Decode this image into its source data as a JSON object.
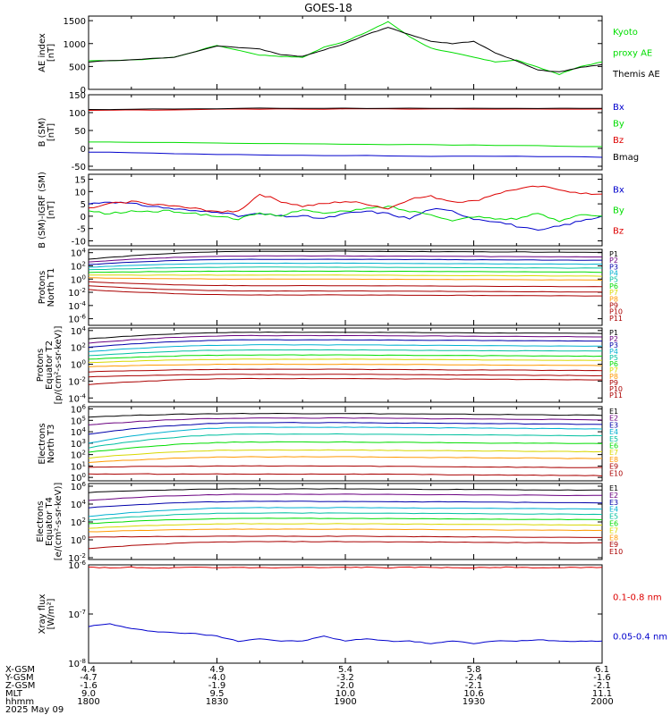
{
  "title": "GOES-18",
  "colors": {
    "black": "#000000",
    "green": "#00dd00",
    "red": "#dd0000",
    "blue": "#0000cc",
    "purple": "#6a0080",
    "navy": "#0000aa",
    "cyan": "#00b0d0",
    "teal": "#00c0a0",
    "lime": "#00dd00",
    "yellow": "#d8d800",
    "orange": "#ff9900",
    "darkred": "#aa0000"
  },
  "chart_data": [
    {
      "id": "ae",
      "type": "line",
      "ylabel": [
        "AE index",
        "[nT]"
      ],
      "ylim": [
        0,
        1600
      ],
      "yticks": [
        0,
        500,
        1000,
        1500
      ],
      "yticklabels": [
        "0",
        "500",
        "1000",
        "1500"
      ],
      "x": [
        0,
        10,
        20,
        30,
        40,
        45,
        50,
        55,
        60,
        65,
        70,
        75,
        80,
        85,
        90,
        95,
        100,
        105,
        110,
        115,
        120
      ],
      "series": [
        {
          "name": "Kyoto proxy AE",
          "color": "green",
          "values": [
            620,
            640,
            700,
            960,
            750,
            720,
            700,
            920,
            1050,
            1250,
            1480,
            1150,
            900,
            800,
            700,
            600,
            640,
            480,
            330,
            500,
            600
          ]
        },
        {
          "name": "Themis AE",
          "color": "black",
          "values": [
            600,
            650,
            700,
            950,
            880,
            760,
            720,
            860,
            1000,
            1200,
            1350,
            1200,
            1050,
            1000,
            1050,
            800,
            620,
            420,
            380,
            480,
            540
          ]
        }
      ],
      "legend": [
        {
          "text": "Kyoto",
          "color": "green"
        },
        {
          "text": "proxy AE",
          "color": "green"
        },
        {
          "text": "Themis AE",
          "color": "black"
        }
      ]
    },
    {
      "id": "bsm",
      "type": "line",
      "ylabel": [
        "B (SM)",
        "[nT]"
      ],
      "ylim": [
        -60,
        150
      ],
      "yticks": [
        -50,
        0,
        50,
        100,
        150
      ],
      "yticklabels": [
        "-50",
        "0",
        "50",
        "100",
        "150"
      ],
      "x": [
        0,
        20,
        40,
        60,
        80,
        100,
        120
      ],
      "series": [
        {
          "name": "Bx",
          "color": "blue",
          "values": [
            -10,
            -15,
            -18,
            -20,
            -22,
            -22,
            -25
          ]
        },
        {
          "name": "By",
          "color": "green",
          "values": [
            18,
            16,
            14,
            12,
            10,
            8,
            5
          ]
        },
        {
          "name": "Bz",
          "color": "red",
          "values": [
            106,
            108,
            110,
            110,
            110,
            110,
            110
          ]
        },
        {
          "name": "Bmag",
          "color": "black",
          "values": [
            108,
            110,
            112,
            112,
            112,
            112,
            112
          ]
        }
      ],
      "legend": [
        {
          "text": "Bx",
          "color": "blue"
        },
        {
          "text": "By",
          "color": "green"
        },
        {
          "text": "Bz",
          "color": "red"
        },
        {
          "text": "Bmag",
          "color": "black"
        }
      ]
    },
    {
      "id": "bigrf",
      "type": "line",
      "ylabel": [
        "B (SM)-IGRF (SM)",
        "[nT]"
      ],
      "ylim": [
        -12,
        17
      ],
      "yticks": [
        -10,
        -5,
        0,
        5,
        10,
        15
      ],
      "yticklabels": [
        "-10",
        "-5",
        "0",
        "5",
        "10",
        "15"
      ],
      "x": [
        0,
        5,
        10,
        15,
        20,
        25,
        30,
        35,
        40,
        45,
        50,
        55,
        60,
        65,
        70,
        75,
        80,
        85,
        90,
        95,
        100,
        105,
        110,
        115,
        120
      ],
      "series": [
        {
          "name": "Bx",
          "color": "blue",
          "values": [
            5,
            6,
            5,
            4,
            3,
            2,
            2,
            0,
            1,
            0,
            0,
            -1,
            1,
            2,
            1,
            -1,
            3,
            2,
            -1,
            -2,
            -4,
            -6,
            -4,
            -2,
            0
          ]
        },
        {
          "name": "By",
          "color": "green",
          "values": [
            2,
            1,
            2,
            2,
            2,
            1,
            0,
            -1,
            1,
            0,
            3,
            1,
            2,
            3,
            4,
            2,
            1,
            -2,
            0,
            -1,
            -1,
            1,
            -2,
            1,
            0
          ]
        },
        {
          "name": "Bz",
          "color": "red",
          "values": [
            3,
            5,
            6,
            5,
            4,
            3,
            2,
            2,
            9,
            6,
            4,
            5,
            6,
            5,
            3,
            7,
            8,
            6,
            6,
            9,
            11,
            12,
            11,
            9,
            9
          ]
        }
      ],
      "legend": [
        {
          "text": "Bx",
          "color": "blue"
        },
        {
          "text": "By",
          "color": "green"
        },
        {
          "text": "Bz",
          "color": "red"
        }
      ]
    },
    {
      "id": "pnorth",
      "type": "line",
      "log": true,
      "ylabel": [
        "Protons",
        "North T1"
      ],
      "ylim": [
        -7,
        4.5
      ],
      "yticks": [
        4,
        2,
        0,
        -2,
        -4,
        -6
      ],
      "yticklabels": [
        "10^4",
        "10^2",
        "10^0",
        "10^-2",
        "10^-4",
        "10^-6"
      ],
      "start": [
        3.0,
        2.6,
        2.2,
        1.8,
        1.4,
        1.0,
        0.6,
        0.2,
        -0.4,
        -1.0,
        -1.6
      ],
      "end": [
        4.2,
        3.5,
        3.0,
        2.4,
        1.8,
        1.2,
        0.6,
        0.0,
        -1.0,
        -1.8,
        -2.4
      ],
      "legend": [
        "P1",
        "P2",
        "P3",
        "P4",
        "P5",
        "P6",
        "P7",
        "P8",
        "P9",
        "P10",
        "P11"
      ]
    },
    {
      "id": "peq",
      "type": "line",
      "log": true,
      "ylabel": [
        "Protons",
        "Equator T2",
        "[p/(cm²-s-sr-keV)]"
      ],
      "ylim": [
        -4.5,
        4.3
      ],
      "yticks": [
        4,
        2,
        0,
        -2,
        -4
      ],
      "yticklabels": [
        "10^4",
        "10^2",
        "10^0",
        "10^-2",
        "10^-4"
      ],
      "start": [
        3.0,
        2.5,
        2.0,
        1.5,
        1.0,
        0.6,
        0.2,
        -0.3,
        -0.9,
        -1.5,
        -2.4
      ],
      "end": [
        3.8,
        3.4,
        2.9,
        2.3,
        1.7,
        1.1,
        0.6,
        0.0,
        -0.6,
        -1.2,
        -1.7
      ],
      "legend": [
        "P1",
        "P2",
        "P3",
        "P4",
        "P5",
        "P6",
        "P7",
        "P8",
        "P9",
        "P10",
        "P11"
      ]
    },
    {
      "id": "enorth",
      "type": "line",
      "log": true,
      "ylabel": [
        "Electrons",
        "North T3"
      ],
      "ylim": [
        -0.3,
        6.2
      ],
      "yticks": [
        6,
        5,
        4,
        3,
        2,
        1,
        0
      ],
      "yticklabels": [
        "10^6",
        "10^5",
        "10^4",
        "10^3",
        "10^2",
        "10^1",
        "10^0"
      ],
      "start": [
        5.3,
        4.6,
        3.8,
        3.0,
        2.6,
        2.2,
        1.7,
        1.3,
        0.9,
        0.3
      ],
      "end": [
        5.6,
        5.2,
        4.8,
        4.4,
        3.8,
        3.1,
        2.4,
        1.8,
        1.0,
        0.3
      ],
      "legend": [
        "E1",
        "E2",
        "E3",
        "E4",
        "E5",
        "E6",
        "E7",
        "E8",
        "E9",
        "E10"
      ]
    },
    {
      "id": "eeq",
      "type": "line",
      "log": true,
      "ylabel": [
        "Electrons",
        "Equator T4",
        "[e/(cm²-s-sr-keV)]"
      ],
      "ylim": [
        -2.2,
        6.3
      ],
      "yticks": [
        6,
        4,
        2,
        0,
        -2
      ],
      "yticklabels": [
        "10^6",
        "10^4",
        "10^2",
        "10^0",
        "10^-2"
      ],
      "start": [
        5.3,
        4.4,
        3.6,
        2.6,
        2.2,
        1.8,
        1.3,
        0.9,
        0.3,
        -1.0
      ],
      "end": [
        5.7,
        5.1,
        4.3,
        3.6,
        3.0,
        2.4,
        1.8,
        1.2,
        0.4,
        -0.2
      ],
      "legend": [
        "E1",
        "E2",
        "E3",
        "E4",
        "E5",
        "E6",
        "E7",
        "E8",
        "E9",
        "E10"
      ]
    },
    {
      "id": "xray",
      "type": "line",
      "log": true,
      "ylabel": [
        "Xray flux",
        "[W/m²]"
      ],
      "ylim": [
        -8,
        -6
      ],
      "yticks": [
        -6,
        -7,
        -8
      ],
      "yticklabels": [
        "10^-6",
        "10^-7",
        "10^-8"
      ],
      "x": [
        0,
        5,
        10,
        15,
        20,
        25,
        30,
        35,
        40,
        45,
        50,
        55,
        60,
        65,
        70,
        75,
        80,
        85,
        90,
        95,
        100,
        105,
        110,
        115,
        120
      ],
      "series": [
        {
          "name": "0.1-0.8 nm",
          "color": "red",
          "values": [
            -6.05,
            -6.06,
            -6.05,
            -6.07,
            -6.06,
            -6.05,
            -6.06,
            -6.05,
            -6.06,
            -6.06,
            -6.05,
            -6.06,
            -6.05,
            -6.05,
            -6.06,
            -6.05,
            -6.05,
            -6.06,
            -6.06,
            -6.05,
            -6.05,
            -6.06,
            -6.06,
            -6.05,
            -6.05
          ]
        },
        {
          "name": "0.05-0.4 nm",
          "color": "blue",
          "values": [
            -7.25,
            -7.2,
            -7.3,
            -7.35,
            -7.38,
            -7.4,
            -7.45,
            -7.55,
            -7.5,
            -7.55,
            -7.55,
            -7.45,
            -7.55,
            -7.5,
            -7.55,
            -7.55,
            -7.6,
            -7.55,
            -7.6,
            -7.55,
            -7.55,
            -7.52,
            -7.55,
            -7.55,
            -7.55
          ]
        }
      ],
      "legend": [
        {
          "text": "0.1-0.8 nm",
          "color": "red"
        },
        {
          "text": "0.05-0.4 nm",
          "color": "blue"
        }
      ]
    }
  ],
  "footer": {
    "rows": [
      {
        "label": "X-GSM",
        "values": [
          "4.4",
          "4.9",
          "5.4",
          "5.8",
          "6.1"
        ]
      },
      {
        "label": "Y-GSM",
        "values": [
          "-4.7",
          "-4.0",
          "-3.2",
          "-2.4",
          "-1.6"
        ]
      },
      {
        "label": "Z-GSM",
        "values": [
          "-1.6",
          "-1.9",
          "-2.0",
          "-2.1",
          "-2.1"
        ]
      },
      {
        "label": "MLT",
        "values": [
          "9.0",
          "9.5",
          "10.0",
          "10.6",
          "11.1"
        ]
      },
      {
        "label": "hhmm",
        "values": [
          "1800",
          "1830",
          "1900",
          "1930",
          "2000"
        ]
      }
    ],
    "date": "2025 May 09"
  }
}
